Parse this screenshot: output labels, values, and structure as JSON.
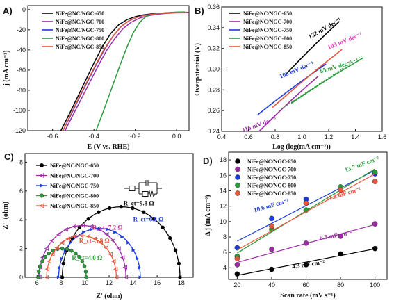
{
  "chart_data": [
    {
      "panel": "A)",
      "type": "line",
      "xlabel": "E (V vs. RHE)",
      "ylabel": "j (mA cm⁻²)",
      "xlim": [
        -0.72,
        0.06
      ],
      "ylim": [
        -120,
        4
      ],
      "xticks": [
        -0.6,
        -0.4,
        -0.2,
        0.0
      ],
      "yticks": [
        0,
        -20,
        -40,
        -60,
        -80,
        -100,
        -120
      ],
      "legend": "top-left",
      "series": [
        {
          "name": "NiFe@NC/NGC-650",
          "color": "#000000",
          "x": [
            -0.56,
            -0.52,
            -0.48,
            -0.44,
            -0.4,
            -0.36,
            -0.32,
            -0.28,
            -0.24,
            -0.2,
            -0.16,
            -0.12,
            -0.08,
            -0.04,
            0.0,
            0.04
          ],
          "y": [
            -120,
            -104,
            -87,
            -70,
            -53,
            -37,
            -24,
            -15,
            -10,
            -7,
            -5.2,
            -4.2,
            -3.6,
            -3.1,
            -2.7,
            -2.5
          ]
        },
        {
          "name": "NiFe@NC/NGC-700",
          "color": "#9b2aa5",
          "x": [
            -0.54,
            -0.5,
            -0.46,
            -0.42,
            -0.38,
            -0.34,
            -0.3,
            -0.26,
            -0.22,
            -0.18,
            -0.14,
            -0.1,
            -0.06,
            -0.02,
            0.02,
            0.06
          ],
          "y": [
            -120,
            -104,
            -88,
            -72,
            -56,
            -41,
            -29,
            -19,
            -12.5,
            -8.5,
            -6.2,
            -4.8,
            -3.9,
            -3.3,
            -2.9,
            -2.6
          ]
        },
        {
          "name": "NiFe@NC/NGC-750",
          "color": "#1a3be0",
          "x": [
            -0.55,
            -0.51,
            -0.47,
            -0.43,
            -0.39,
            -0.35,
            -0.31,
            -0.27,
            -0.23,
            -0.19,
            -0.15,
            -0.11,
            -0.07,
            -0.03,
            0.01,
            0.05
          ],
          "y": [
            -120,
            -104,
            -87,
            -71,
            -55,
            -40,
            -27,
            -17,
            -11,
            -7.5,
            -5.5,
            -4.3,
            -3.6,
            -3.1,
            -2.8,
            -2.6
          ]
        },
        {
          "name": "NiFe@NC/NGC-800",
          "color": "#2a9a3a",
          "x": [
            -0.39,
            -0.36,
            -0.33,
            -0.3,
            -0.27,
            -0.24,
            -0.21,
            -0.18,
            -0.15,
            -0.12,
            -0.09,
            -0.06,
            -0.03,
            0.0,
            0.04
          ],
          "y": [
            -120,
            -104,
            -87,
            -70,
            -53,
            -37,
            -23,
            -13,
            -7,
            -4.8,
            -3.8,
            -3.2,
            -2.8,
            -2.5,
            -2.3
          ]
        },
        {
          "name": "NiFe@NC/NGC-850",
          "color": "#e8553a",
          "x": [
            -0.55,
            -0.51,
            -0.47,
            -0.43,
            -0.39,
            -0.35,
            -0.31,
            -0.27,
            -0.23,
            -0.19,
            -0.15,
            -0.11,
            -0.07,
            -0.03,
            0.01,
            0.05
          ],
          "y": [
            -120,
            -103,
            -86,
            -70,
            -54,
            -39,
            -27,
            -17,
            -11,
            -7.5,
            -5.5,
            -4.4,
            -3.7,
            -3.2,
            -2.9,
            -2.6
          ]
        }
      ]
    },
    {
      "panel": "B)",
      "type": "line",
      "xlabel": "Log (log(mA cm⁻²))",
      "ylabel": "Overpotential (V)",
      "xlim": [
        0.4,
        1.6
      ],
      "ylim": [
        0.24,
        0.36
      ],
      "xticks": [
        0.4,
        0.6,
        0.8,
        1.0,
        1.2,
        1.4,
        1.6
      ],
      "yticks": [
        0.24,
        0.26,
        0.28,
        0.3,
        0.32,
        0.34,
        0.36
      ],
      "legend": "top-left",
      "series": [
        {
          "name": "NiFe@NC/NGC-650",
          "color": "#000000",
          "x": [
            0.88,
            1.28
          ],
          "y": [
            0.295,
            0.346
          ]
        },
        {
          "name": "NiFe@NC/NGC-700",
          "color": "#9b2aa5",
          "x": [
            0.68,
            1.12
          ],
          "y": [
            0.24,
            0.293
          ]
        },
        {
          "name": "NiFe@NC/NGC-750",
          "color": "#1a3be0",
          "x": [
            0.67,
            1.18
          ],
          "y": [
            0.256,
            0.305
          ]
        },
        {
          "name": "NiFe@NC/NGC-800",
          "color": "#2a9a3a",
          "x": [
            0.92,
            1.46
          ],
          "y": [
            0.267,
            0.311
          ]
        },
        {
          "name": "NiFe@NC/NGC-850",
          "color": "#e8553a",
          "x": [
            0.78,
            1.3
          ],
          "y": [
            0.263,
            0.319
          ]
        }
      ],
      "fits": [
        {
          "color": "#2a9a3a",
          "x": [
            0.85,
            1.45
          ],
          "y": [
            0.262,
            0.313
          ]
        }
      ],
      "annotations": [
        {
          "text": "132 mV dec⁻¹",
          "color": "#000000"
        },
        {
          "text": "103 mV dec⁻¹",
          "color": "#e040c0"
        },
        {
          "text": "108 mV dec⁻¹",
          "color": "#1a3be0"
        },
        {
          "text": "85 mV dec⁻¹",
          "color": "#2a9a3a"
        },
        {
          "text": "116 mV dec⁻¹",
          "color": "#9b2aa5"
        }
      ]
    },
    {
      "panel": "C)",
      "type": "scatter",
      "xlabel": "Z' (ohm)",
      "ylabel": "Z'' (ohm)",
      "xlim": [
        5,
        19
      ],
      "ylim": [
        0,
        8.6
      ],
      "xticks": [
        6,
        8,
        10,
        12,
        14,
        16,
        18
      ],
      "yticks": [
        0,
        2,
        4,
        6,
        8
      ],
      "legend": "top-left",
      "series": [
        {
          "name": "NiFe@NC/NGC-650",
          "color": "#000000",
          "marker": "circle",
          "arc": [
            8.1,
            17.9
          ],
          "rct_label": "R_ct=9.8 Ω"
        },
        {
          "name": "NiFe@NC/NGC-700",
          "color": "#9b2aa5",
          "marker": "triangle-left",
          "arc": [
            6.2,
            13.4
          ],
          "rct_label": "R_ct=7.2 Ω"
        },
        {
          "name": "NiFe@NC/NGC-750",
          "color": "#1a3be0",
          "marker": "triangle-right",
          "arc": [
            7.8,
            14.6
          ],
          "rct_label": "R_ct=6.8 Ω"
        },
        {
          "name": "NiFe@NC/NGC-800",
          "color": "#2a9a3a",
          "marker": "circle",
          "arc": [
            6.1,
            10.1
          ],
          "rct_label": "R_ct=4.0 Ω"
        },
        {
          "name": "NiFe@NC/NGC-850",
          "color": "#e8553a",
          "marker": "triangle-left",
          "arc": [
            6.8,
            12.6
          ],
          "rct_label": "R_ct=5.8 Ω"
        }
      ]
    },
    {
      "panel": "D)",
      "type": "scatter",
      "xlabel": "Scan rate (mV s⁻¹)",
      "ylabel": "Δ j (mA cm⁻²)",
      "xlim": [
        15,
        107
      ],
      "ylim": [
        2.5,
        19
      ],
      "xticks": [
        20,
        40,
        60,
        80,
        100
      ],
      "yticks": [
        4,
        6,
        8,
        10,
        12,
        14,
        16,
        18
      ],
      "legend": "top-left",
      "x": [
        20,
        40,
        60,
        80,
        100
      ],
      "series": [
        {
          "name": "NiFe@NC/NGC-650",
          "color": "#000000",
          "values": [
            3.2,
            3.8,
            4.4,
            5.8,
            6.5
          ],
          "fit_label": "4.3 mF cm⁻²"
        },
        {
          "name": "NiFe@NC/NGC-700",
          "color": "#9b2aa5",
          "values": [
            4.4,
            6.4,
            7.2,
            8.1,
            9.7
          ],
          "fit_label": "6.3 mF cm⁻²"
        },
        {
          "name": "NiFe@NC/NGC-750",
          "color": "#1a3be0",
          "values": [
            6.6,
            10.4,
            12.9,
            14.2,
            16.2
          ],
          "fit_label": "10.6 mF cm⁻²"
        },
        {
          "name": "NiFe@NC/NGC-800",
          "color": "#2a9a3a",
          "values": [
            5.5,
            9.0,
            11.5,
            14.5,
            16.4
          ],
          "fit_label": "13.7 mF cm⁻²"
        },
        {
          "name": "NiFe@NC/NGC-850",
          "color": "#e8553a",
          "values": [
            5.2,
            9.4,
            12.4,
            14.1,
            15.2
          ],
          "fit_label": "11.2 mF cm⁻²"
        }
      ]
    }
  ]
}
